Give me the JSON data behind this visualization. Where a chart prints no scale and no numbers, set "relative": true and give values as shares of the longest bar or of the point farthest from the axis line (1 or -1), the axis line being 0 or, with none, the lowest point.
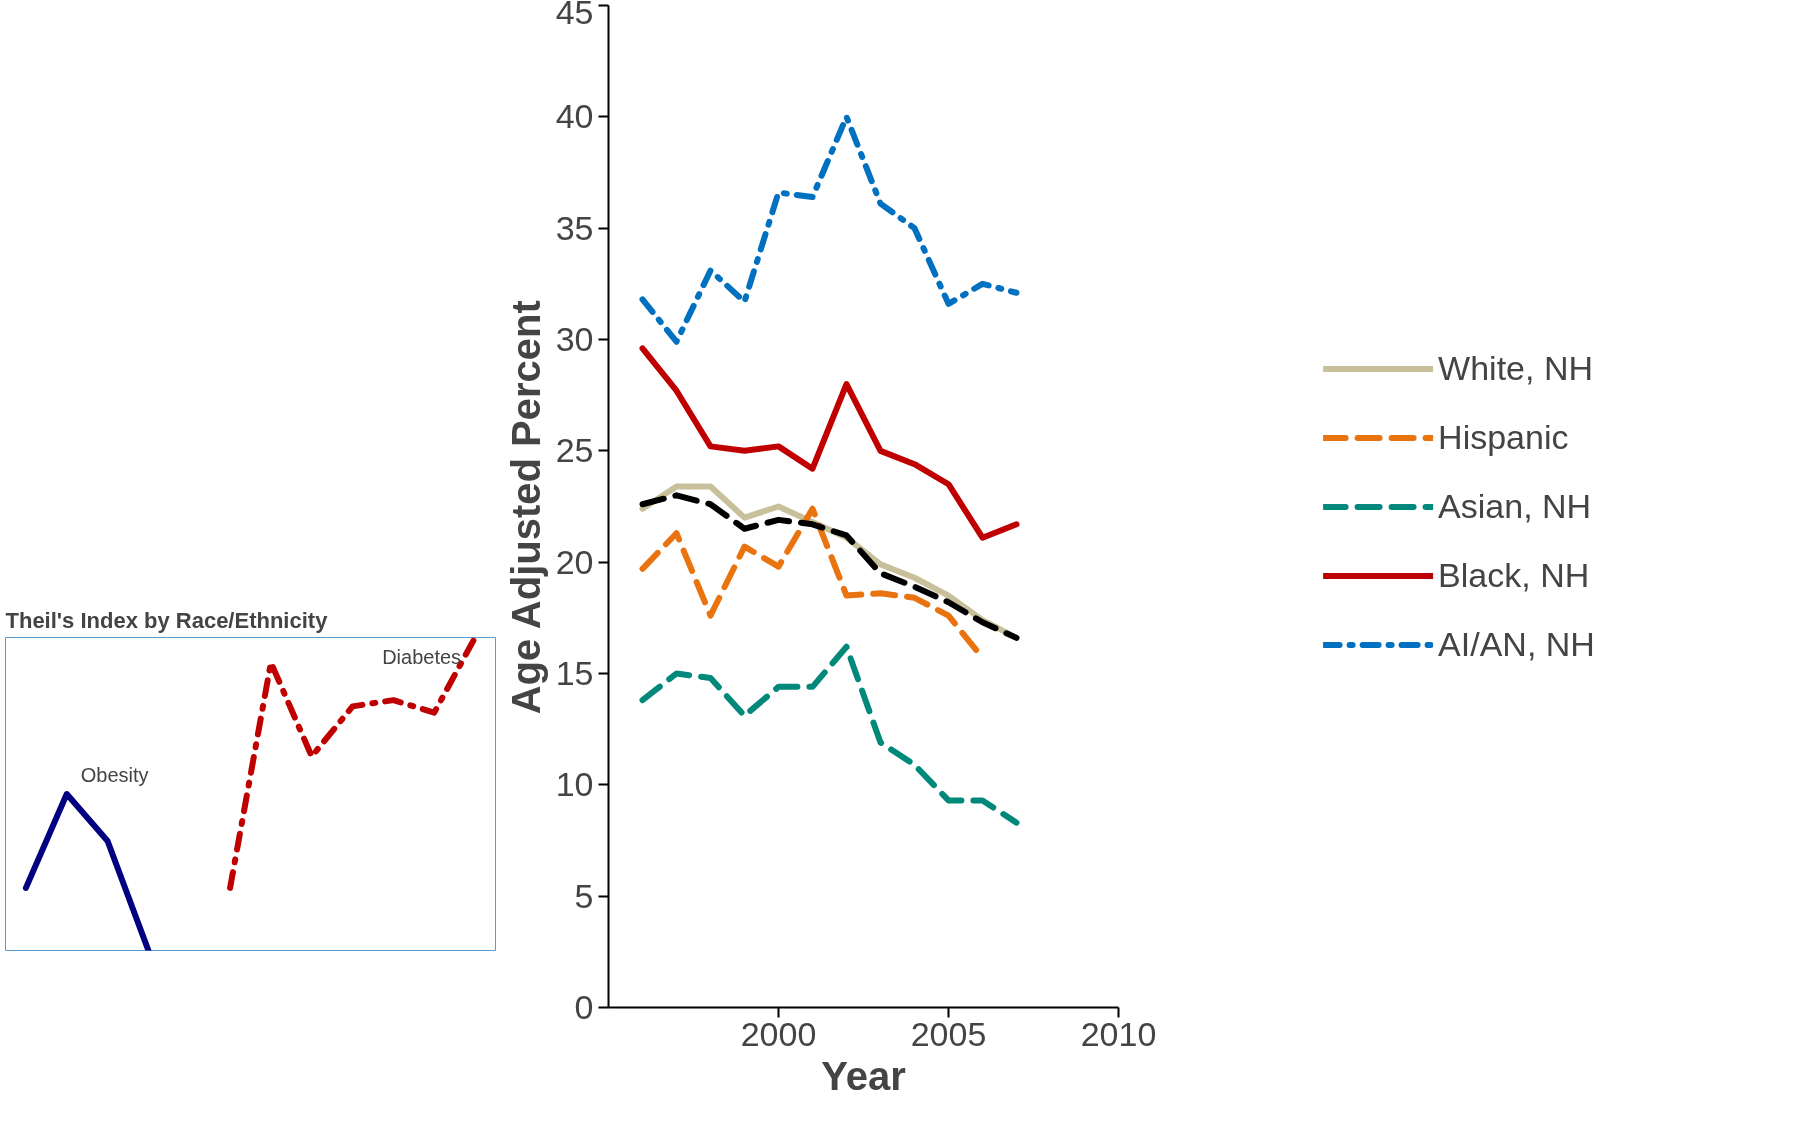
{
  "chart_data": [
    {
      "type": "line",
      "xlabel": "Year",
      "ylabel": "Age Adjusted Percent",
      "x": [
        1996,
        1997,
        1998,
        1999,
        2000,
        2001,
        2002,
        2003,
        2004,
        2005,
        2006,
        2007
      ],
      "xlim": [
        1995,
        2010
      ],
      "xticks": [
        2000,
        2005,
        2010
      ],
      "ylim": [
        0,
        45
      ],
      "yticks": [
        0,
        5,
        10,
        15,
        20,
        25,
        30,
        35,
        40,
        45
      ],
      "grid": false,
      "legend": "right",
      "marker": "none",
      "series": [
        {
          "name": "White, NH",
          "color": "#c8c09a",
          "line_style": "solid",
          "values": [
            22.4,
            23.4,
            23.4,
            22.0,
            22.5,
            21.8,
            21.1,
            19.9,
            19.3,
            18.5,
            17.4,
            16.6
          ]
        },
        {
          "name": "Hispanic",
          "color": "#e8730f",
          "line_style": "dashed",
          "values": [
            19.7,
            21.3,
            17.6,
            20.7,
            19.8,
            22.4,
            18.5,
            18.6,
            18.4,
            17.6,
            15.7,
            null
          ]
        },
        {
          "name": "Asian, NH",
          "color": "#00897b",
          "line_style": "dashed",
          "values": [
            13.8,
            15.0,
            14.8,
            13.1,
            14.4,
            14.4,
            16.2,
            11.9,
            10.9,
            9.3,
            9.3,
            8.3
          ]
        },
        {
          "name": "Black, NH",
          "color": "#c00000",
          "line_style": "solid",
          "values": [
            29.6,
            27.7,
            25.2,
            25.0,
            25.2,
            24.2,
            28.0,
            25.0,
            24.4,
            23.5,
            21.1,
            21.7
          ]
        },
        {
          "name": "AI/AN, NH",
          "color": "#0070c0",
          "line_style": "dotted",
          "values": [
            31.8,
            29.9,
            33.1,
            31.7,
            36.6,
            36.4,
            40.0,
            36.1,
            35.0,
            31.6,
            32.5,
            32.1
          ]
        },
        {
          "color": "#000000",
          "line_style": "dashed",
          "values": [
            22.6,
            23.0,
            22.6,
            21.5,
            21.9,
            21.7,
            21.2,
            19.5,
            18.9,
            18.2,
            17.3,
            16.6
          ]
        }
      ]
    },
    {
      "type": "line",
      "title": "Theil's Index by Race/Ethnicity",
      "relative": true,
      "categories": [
        null,
        null,
        null,
        null,
        null,
        null,
        null,
        null,
        null,
        null,
        null,
        null
      ],
      "legend": false,
      "marker": "none",
      "annotations": [
        "Obesity",
        "Diabetes"
      ],
      "series": [
        {
          "color": "#000080",
          "line_style": "solid",
          "values": [
            0.2,
            0.5,
            0.35,
            0,
            null,
            null,
            null,
            null,
            null,
            null,
            null,
            null
          ]
        },
        {
          "color": "#c00000",
          "line_style": "dotted",
          "values": [
            null,
            null,
            null,
            null,
            null,
            0.2,
            0.92,
            0.62,
            0.78,
            0.8,
            0.76,
            1.0
          ]
        }
      ]
    }
  ]
}
